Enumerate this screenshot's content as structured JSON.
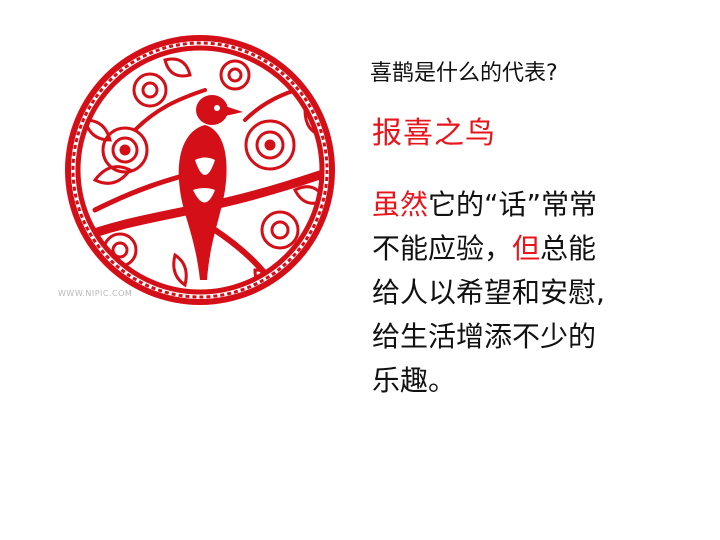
{
  "slide": {
    "question": "喜鹊是什么的代表?",
    "answer": "报喜之鸟",
    "watermark": "WWW.NIPIC.COM"
  },
  "paragraph": {
    "line1": {
      "red": "虽然",
      "rest": "它的“话”常常"
    },
    "line2": {
      "before": "不能应验，",
      "red": "但",
      "after": "总能"
    },
    "line3": "给人以希望和安慰,",
    "line4": "给生活增添不少的",
    "line5": "乐趣。"
  },
  "colors": {
    "accent": "#e8151b",
    "papercut": "#d40f17",
    "text": "#111111"
  },
  "image": {
    "icon": "magpie-papercut-icon"
  }
}
